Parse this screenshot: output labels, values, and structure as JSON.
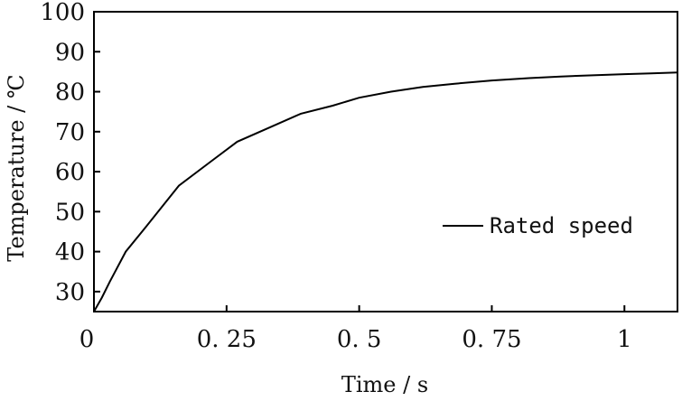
{
  "chart_data": {
    "type": "line",
    "title": "",
    "xlabel": "Time / s",
    "ylabel": "Temperature / ℃",
    "xlim": [
      0,
      1.1
    ],
    "ylim": [
      25,
      100
    ],
    "xticks": [
      0,
      0.25,
      0.5,
      0.75,
      1
    ],
    "xtick_labels": [
      "0",
      "0. 25",
      "0. 5",
      "0. 75",
      "1"
    ],
    "yticks": [
      30,
      40,
      50,
      60,
      70,
      80,
      90,
      100
    ],
    "ytick_labels": [
      "30",
      "40",
      "50",
      "60",
      "70",
      "80",
      "90",
      "100"
    ],
    "legend": {
      "position": "center-right",
      "entries": [
        "Rated speed"
      ]
    },
    "grid": false,
    "series": [
      {
        "name": "Rated speed",
        "color": "#000000",
        "x": [
          0,
          0.015,
          0.03,
          0.06,
          0.1,
          0.16,
          0.22,
          0.27,
          0.33,
          0.39,
          0.45,
          0.5,
          0.56,
          0.62,
          0.68,
          0.75,
          0.82,
          0.88,
          0.94,
          1.0,
          1.05,
          1.1
        ],
        "y": [
          25,
          28.5,
          32.5,
          40,
          46.5,
          56.5,
          62.5,
          67.5,
          71,
          74.5,
          76.5,
          78.5,
          80,
          81.2,
          82,
          82.8,
          83.4,
          83.8,
          84.1,
          84.4,
          84.6,
          84.8
        ]
      }
    ]
  }
}
